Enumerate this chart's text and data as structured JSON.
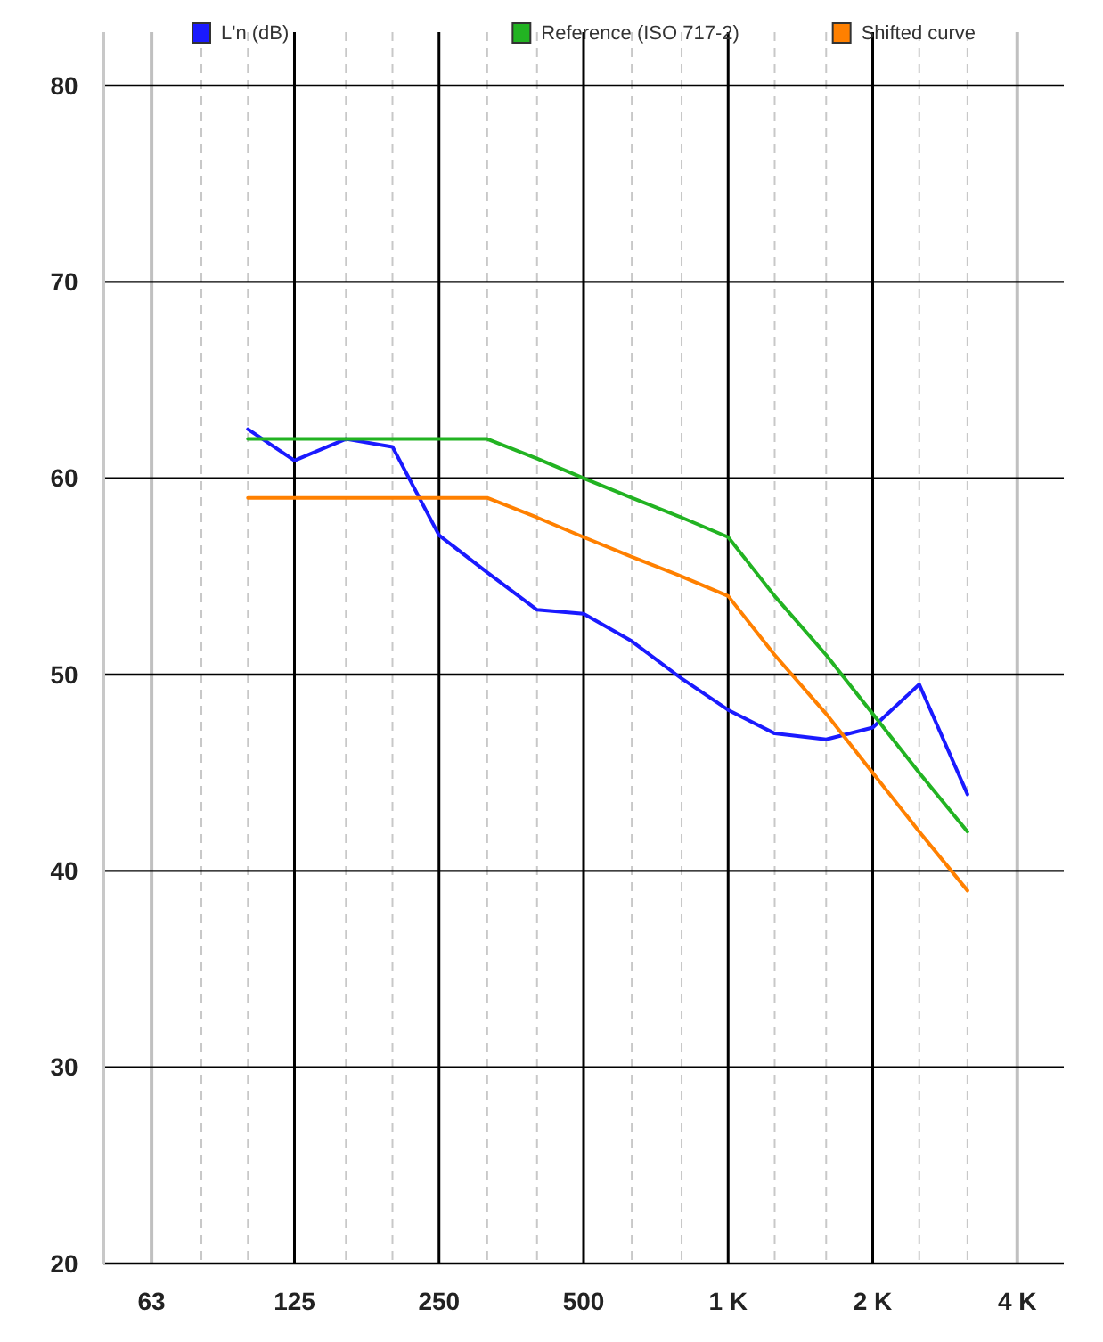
{
  "chart_data": {
    "type": "line",
    "x": [
      100,
      125,
      160,
      200,
      250,
      315,
      400,
      500,
      630,
      800,
      1000,
      1250,
      1600,
      2000,
      2500,
      3150
    ],
    "series": [
      {
        "name": "L'n (dB)",
        "color": "#1a1aff",
        "values": [
          62.5,
          60.9,
          62.0,
          61.6,
          57.1,
          55.2,
          53.3,
          53.1,
          51.7,
          49.8,
          48.2,
          47.0,
          46.7,
          47.3,
          49.5,
          43.9
        ]
      },
      {
        "name": "Reference (ISO 717-2)",
        "color": "#22b322",
        "values": [
          62,
          62,
          62,
          62,
          62,
          62,
          61,
          60,
          59,
          58,
          57,
          54,
          51,
          48,
          45,
          42
        ]
      },
      {
        "name": "Shifted curve",
        "color": "#ff8000",
        "values": [
          59,
          59,
          59,
          59,
          59,
          59,
          58,
          57,
          56,
          55,
          54,
          51,
          48,
          45,
          42,
          39
        ]
      }
    ],
    "log": "x",
    "xlim": [
      50,
      5000
    ],
    "ylim": [
      20,
      80
    ],
    "xticks": [
      63,
      {
        "value": 80,
        "label": null
      },
      {
        "value": 100,
        "label": null
      },
      125,
      {
        "value": 160,
        "label": null
      },
      {
        "value": 200,
        "label": null
      },
      250,
      {
        "value": 315,
        "label": null
      },
      {
        "value": 400,
        "label": null
      },
      500,
      {
        "value": 630,
        "label": null
      },
      {
        "value": 800,
        "label": null
      },
      {
        "value": 1000,
        "label": "1 K"
      },
      {
        "value": 1250,
        "label": null
      },
      {
        "value": 1600,
        "label": null
      },
      {
        "value": 2000,
        "label": "2 K"
      },
      {
        "value": 2500,
        "label": null
      },
      {
        "value": 3150,
        "label": null
      },
      {
        "value": 4000,
        "label": "4 K"
      }
    ],
    "yticks": [
      20,
      30,
      40,
      50,
      60,
      70,
      80
    ],
    "grid": true,
    "legend": "top",
    "marker": "none",
    "line_style": "solid"
  }
}
